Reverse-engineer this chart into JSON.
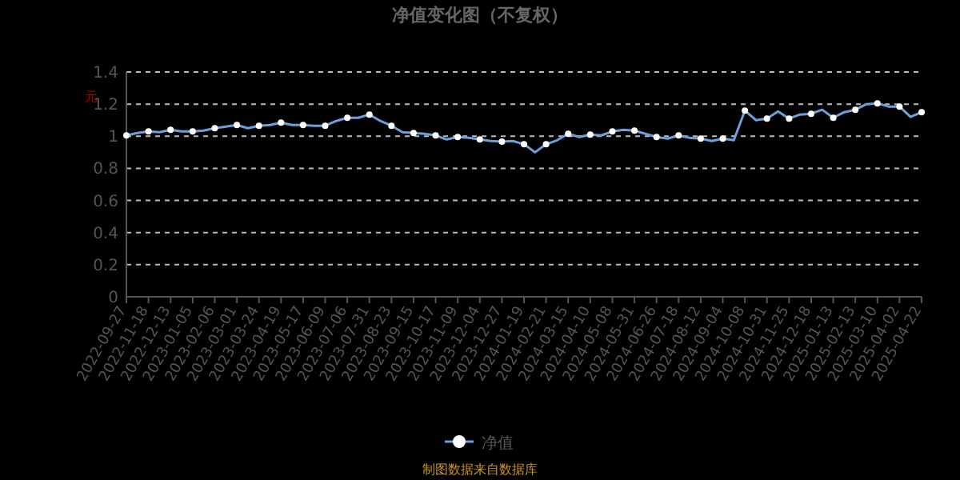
{
  "chart_data": {
    "type": "line",
    "title": "净值变化图（不复权）",
    "ylabel": "元",
    "categories": [
      "2022-09-27",
      null,
      "2022-11-18",
      null,
      "2022-12-13",
      null,
      "2023-01-05",
      null,
      "2023-02-06",
      null,
      "2023-03-01",
      null,
      "2023-03-24",
      null,
      "2023-04-19",
      null,
      "2023-05-17",
      null,
      "2023-06-09",
      null,
      "2023-07-06",
      null,
      "2023-07-31",
      null,
      "2023-08-23",
      null,
      "2023-09-15",
      null,
      "2023-10-17",
      null,
      "2023-11-09",
      null,
      "2023-12-04",
      null,
      "2023-12-27",
      null,
      "2024-01-19",
      null,
      "2024-02-21",
      null,
      "2024-03-15",
      null,
      "2024-04-10",
      null,
      "2024-05-08",
      null,
      "2024-05-31",
      null,
      "2024-06-26",
      null,
      "2024-07-18",
      null,
      "2024-08-12",
      null,
      "2024-09-04",
      null,
      "2024-10-08",
      null,
      "2024-10-31",
      null,
      "2024-11-25",
      null,
      "2024-12-18",
      null,
      "2025-01-13",
      null,
      "2025-02-13",
      null,
      "2025-03-10",
      null,
      "2025-04-02",
      null,
      "2025-04-22"
    ],
    "series": [
      {
        "name": "净值",
        "color": "#6f9fd8",
        "values": [
          1.005,
          1.02,
          1.03,
          1.025,
          1.04,
          1.03,
          1.03,
          1.035,
          1.05,
          1.06,
          1.07,
          1.05,
          1.065,
          1.07,
          1.085,
          1.07,
          1.07,
          1.065,
          1.065,
          1.095,
          1.115,
          1.115,
          1.135,
          1.095,
          1.065,
          1.025,
          1.02,
          1.015,
          1.005,
          0.98,
          0.995,
          0.99,
          0.98,
          0.97,
          0.967,
          0.97,
          0.95,
          0.9,
          0.95,
          0.975,
          1.015,
          0.995,
          1.01,
          1.005,
          1.03,
          1.04,
          1.035,
          1.015,
          0.995,
          0.985,
          1.005,
          0.99,
          0.985,
          0.97,
          0.985,
          0.975,
          1.16,
          1.1,
          1.11,
          1.155,
          1.11,
          1.135,
          1.14,
          1.165,
          1.115,
          1.15,
          1.165,
          1.2,
          1.205,
          1.185,
          1.185,
          1.12,
          1.15
        ]
      }
    ],
    "ylim": [
      0,
      1.4
    ],
    "yticks": [
      0,
      0.2,
      0.4,
      0.6,
      0.8,
      1,
      1.2,
      1.4
    ],
    "grid": "y",
    "legend": "bottom",
    "marker": "circle",
    "line_style": "solid",
    "annotations": [
      "制图数据来自数据库"
    ]
  }
}
